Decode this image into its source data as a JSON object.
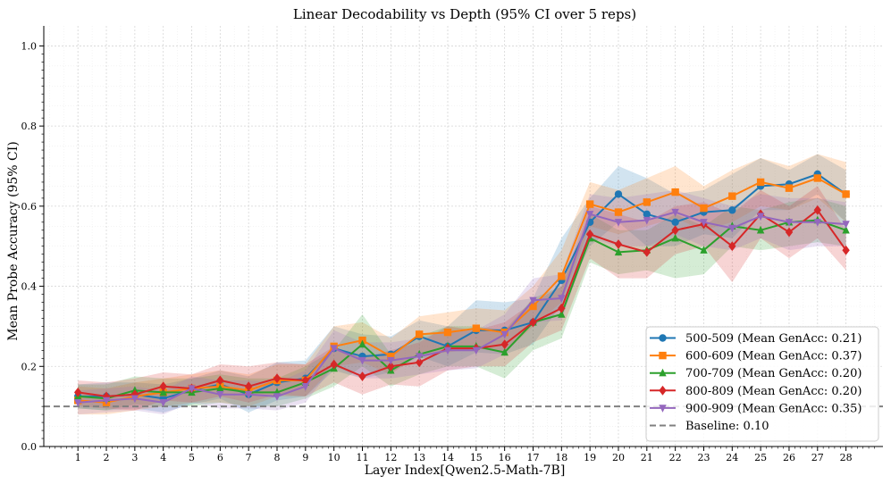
{
  "chart_data": {
    "type": "line",
    "title": "Linear Decodability vs Depth (95% CI over 5 reps)",
    "xlabel": "Layer Index[Qwen2.5-Math-7B]",
    "ylabel": "Mean Probe Accuracy (95% CI)",
    "x": [
      1,
      2,
      3,
      4,
      5,
      6,
      7,
      8,
      9,
      10,
      11,
      12,
      13,
      14,
      15,
      16,
      17,
      18,
      19,
      20,
      21,
      22,
      23,
      24,
      25,
      26,
      27,
      28
    ],
    "xlim": [
      -0.2,
      29.3
    ],
    "ylim": [
      0.0,
      1.05
    ],
    "yticks": [
      0.0,
      0.2,
      0.4,
      0.6,
      0.8,
      1.0
    ],
    "ytick_labels": [
      "0.0",
      "0.2",
      "0.4",
      "0.6",
      "0.8",
      "1.0"
    ],
    "xtick_labels": [
      "1",
      "2",
      "3",
      "4",
      "5",
      "6",
      "7",
      "8",
      "9",
      "10",
      "11",
      "12",
      "13",
      "14",
      "15",
      "16",
      "17",
      "18",
      "19",
      "20",
      "21",
      "22",
      "23",
      "24",
      "25",
      "26",
      "27",
      "28"
    ],
    "grid": true,
    "legend_position": "bottom-right",
    "series": [
      {
        "name": "500-509 (Mean GenAcc: 0.21)",
        "color": "#1f77b4",
        "marker": "circle",
        "values": [
          0.125,
          0.125,
          0.13,
          0.12,
          0.14,
          0.155,
          0.13,
          0.16,
          0.17,
          0.245,
          0.225,
          0.23,
          0.275,
          0.25,
          0.29,
          0.29,
          0.31,
          0.415,
          0.56,
          0.63,
          0.58,
          0.56,
          0.585,
          0.59,
          0.65,
          0.655,
          0.68,
          0.63
        ],
        "ci_low": [
          0.095,
          0.09,
          0.095,
          0.085,
          0.105,
          0.12,
          0.085,
          0.115,
          0.125,
          0.19,
          0.17,
          0.185,
          0.225,
          0.2,
          0.235,
          0.23,
          0.255,
          0.355,
          0.5,
          0.56,
          0.5,
          0.5,
          0.53,
          0.52,
          0.59,
          0.59,
          0.63,
          0.56
        ],
        "ci_high": [
          0.155,
          0.16,
          0.16,
          0.155,
          0.17,
          0.19,
          0.175,
          0.21,
          0.215,
          0.3,
          0.28,
          0.275,
          0.315,
          0.3,
          0.365,
          0.36,
          0.37,
          0.52,
          0.62,
          0.7,
          0.67,
          0.63,
          0.64,
          0.68,
          0.72,
          0.69,
          0.73,
          0.69
        ]
      },
      {
        "name": "600-609 (Mean GenAcc: 0.37)",
        "color": "#ff7f0e",
        "marker": "square",
        "values": [
          0.115,
          0.11,
          0.125,
          0.135,
          0.145,
          0.15,
          0.14,
          0.165,
          0.165,
          0.25,
          0.265,
          0.225,
          0.28,
          0.285,
          0.295,
          0.285,
          0.35,
          0.425,
          0.605,
          0.585,
          0.61,
          0.635,
          0.595,
          0.625,
          0.66,
          0.645,
          0.67,
          0.63
        ],
        "ci_low": [
          0.08,
          0.08,
          0.09,
          0.1,
          0.11,
          0.11,
          0.1,
          0.125,
          0.125,
          0.2,
          0.21,
          0.18,
          0.23,
          0.235,
          0.245,
          0.235,
          0.3,
          0.36,
          0.55,
          0.53,
          0.55,
          0.57,
          0.54,
          0.56,
          0.6,
          0.59,
          0.62,
          0.56
        ],
        "ci_high": [
          0.15,
          0.145,
          0.16,
          0.17,
          0.18,
          0.19,
          0.18,
          0.205,
          0.205,
          0.3,
          0.31,
          0.27,
          0.325,
          0.335,
          0.345,
          0.34,
          0.4,
          0.49,
          0.66,
          0.64,
          0.67,
          0.7,
          0.65,
          0.69,
          0.72,
          0.7,
          0.73,
          0.71
        ]
      },
      {
        "name": "700-709 (Mean GenAcc: 0.20)",
        "color": "#2ca02c",
        "marker": "triangle-up",
        "values": [
          0.125,
          0.12,
          0.14,
          0.135,
          0.135,
          0.145,
          0.135,
          0.135,
          0.16,
          0.195,
          0.255,
          0.19,
          0.23,
          0.25,
          0.25,
          0.235,
          0.31,
          0.33,
          0.52,
          0.485,
          0.49,
          0.52,
          0.49,
          0.55,
          0.54,
          0.56,
          0.565,
          0.54
        ],
        "ci_low": [
          0.095,
          0.09,
          0.105,
          0.1,
          0.1,
          0.11,
          0.1,
          0.1,
          0.12,
          0.15,
          0.2,
          0.15,
          0.18,
          0.2,
          0.2,
          0.17,
          0.24,
          0.27,
          0.46,
          0.43,
          0.44,
          0.42,
          0.43,
          0.5,
          0.49,
          0.5,
          0.51,
          0.5
        ],
        "ci_high": [
          0.155,
          0.155,
          0.175,
          0.17,
          0.17,
          0.18,
          0.17,
          0.17,
          0.2,
          0.24,
          0.33,
          0.23,
          0.275,
          0.3,
          0.3,
          0.29,
          0.37,
          0.4,
          0.58,
          0.54,
          0.54,
          0.58,
          0.55,
          0.6,
          0.59,
          0.61,
          0.62,
          0.6
        ]
      },
      {
        "name": "800-809 (Mean GenAcc: 0.20)",
        "color": "#d62728",
        "marker": "diamond",
        "values": [
          0.135,
          0.125,
          0.13,
          0.15,
          0.145,
          0.165,
          0.15,
          0.17,
          0.165,
          0.205,
          0.175,
          0.2,
          0.21,
          0.245,
          0.245,
          0.255,
          0.31,
          0.345,
          0.53,
          0.505,
          0.485,
          0.54,
          0.555,
          0.5,
          0.58,
          0.535,
          0.59,
          0.49
        ],
        "ci_low": [
          0.1,
          0.095,
          0.09,
          0.115,
          0.11,
          0.125,
          0.11,
          0.13,
          0.125,
          0.16,
          0.13,
          0.155,
          0.15,
          0.19,
          0.2,
          0.2,
          0.26,
          0.29,
          0.47,
          0.42,
          0.42,
          0.48,
          0.5,
          0.41,
          0.52,
          0.47,
          0.52,
          0.44
        ],
        "ci_high": [
          0.165,
          0.16,
          0.17,
          0.185,
          0.18,
          0.205,
          0.2,
          0.21,
          0.205,
          0.25,
          0.22,
          0.24,
          0.26,
          0.3,
          0.29,
          0.31,
          0.36,
          0.4,
          0.6,
          0.58,
          0.56,
          0.6,
          0.61,
          0.58,
          0.64,
          0.6,
          0.65,
          0.54
        ]
      },
      {
        "name": "900-909 (Mean GenAcc: 0.35)",
        "color": "#9467bd",
        "marker": "triangle-down",
        "values": [
          0.11,
          0.115,
          0.12,
          0.11,
          0.145,
          0.13,
          0.13,
          0.125,
          0.15,
          0.245,
          0.215,
          0.215,
          0.225,
          0.24,
          0.24,
          0.28,
          0.365,
          0.37,
          0.58,
          0.56,
          0.565,
          0.585,
          0.56,
          0.545,
          0.575,
          0.56,
          0.56,
          0.555
        ],
        "ci_low": [
          0.08,
          0.085,
          0.09,
          0.08,
          0.11,
          0.095,
          0.095,
          0.09,
          0.11,
          0.2,
          0.17,
          0.17,
          0.18,
          0.19,
          0.195,
          0.23,
          0.31,
          0.315,
          0.52,
          0.5,
          0.5,
          0.53,
          0.5,
          0.49,
          0.52,
          0.49,
          0.5,
          0.5
        ],
        "ci_high": [
          0.14,
          0.145,
          0.15,
          0.14,
          0.175,
          0.165,
          0.165,
          0.16,
          0.19,
          0.29,
          0.26,
          0.26,
          0.27,
          0.29,
          0.29,
          0.33,
          0.42,
          0.43,
          0.63,
          0.62,
          0.63,
          0.64,
          0.62,
          0.6,
          0.63,
          0.62,
          0.62,
          0.61
        ]
      }
    ],
    "baseline": {
      "name": "Baseline: 0.10",
      "value": 0.1,
      "color": "#808080"
    }
  }
}
